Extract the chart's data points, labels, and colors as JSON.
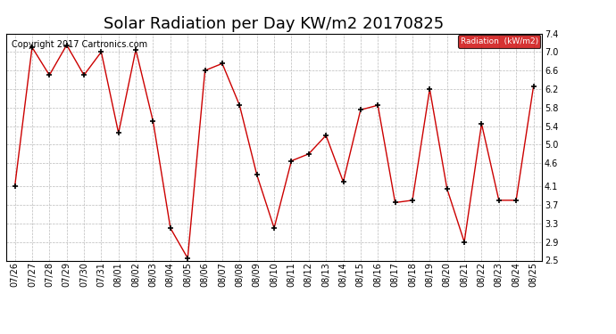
{
  "dates": [
    "07/26",
    "07/27",
    "07/28",
    "07/29",
    "07/30",
    "07/31",
    "08/01",
    "08/02",
    "08/03",
    "08/04",
    "08/05",
    "08/06",
    "08/07",
    "08/08",
    "08/09",
    "08/10",
    "08/11",
    "08/12",
    "08/13",
    "08/14",
    "08/15",
    "08/16",
    "08/17",
    "08/18",
    "08/19",
    "08/20",
    "08/21",
    "08/22",
    "08/23",
    "08/24",
    "08/25"
  ],
  "values": [
    4.1,
    7.1,
    6.5,
    7.15,
    6.5,
    7.0,
    5.25,
    7.05,
    5.5,
    3.2,
    2.55,
    6.6,
    6.75,
    5.85,
    4.35,
    3.2,
    4.65,
    4.8,
    5.2,
    4.2,
    5.75,
    5.85,
    3.75,
    3.8,
    6.2,
    4.05,
    2.9,
    5.45,
    3.8,
    3.8,
    6.25
  ],
  "title": "Solar Radiation per Day KW/m2 20170825",
  "copyright_text": "Copyright 2017 Cartronics.com",
  "legend_label": "Radiation  (kW/m2)",
  "line_color": "#cc0000",
  "marker_color": "#000000",
  "legend_bg": "#cc0000",
  "legend_text_color": "#ffffff",
  "ylim": [
    2.5,
    7.4
  ],
  "yticks": [
    2.5,
    2.9,
    3.3,
    3.7,
    4.1,
    4.6,
    5.0,
    5.4,
    5.8,
    6.2,
    6.6,
    7.0,
    7.4
  ],
  "background_color": "#ffffff",
  "grid_color": "#bbbbbb",
  "title_fontsize": 13,
  "tick_fontsize": 7,
  "copyright_fontsize": 7
}
